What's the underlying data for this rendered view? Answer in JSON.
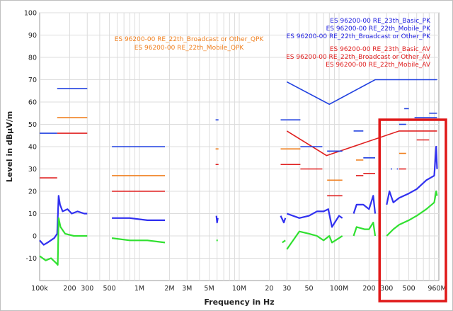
{
  "chart_data": {
    "type": "line",
    "xlabel": "Frequency in Hz",
    "ylabel": "Level in dBµV/m",
    "x_scale": "log",
    "xlim": [
      100000,
      1000000000
    ],
    "ylim": [
      -20,
      100
    ],
    "grid": true,
    "x_ticks": [
      {
        "value": 100000,
        "label": "100k"
      },
      {
        "value": 200000,
        "label": "200"
      },
      {
        "value": 300000,
        "label": "300"
      },
      {
        "value": 500000,
        "label": "500"
      },
      {
        "value": 1000000,
        "label": "1M"
      },
      {
        "value": 2000000,
        "label": "2M"
      },
      {
        "value": 3000000,
        "label": "3M"
      },
      {
        "value": 5000000,
        "label": "5M"
      },
      {
        "value": 10000000,
        "label": "10M"
      },
      {
        "value": 20000000,
        "label": "20"
      },
      {
        "value": 30000000,
        "label": "30"
      },
      {
        "value": 50000000,
        "label": "50"
      },
      {
        "value": 100000000,
        "label": "100M"
      },
      {
        "value": 200000000,
        "label": "200"
      },
      {
        "value": 300000000,
        "label": "300"
      },
      {
        "value": 500000000,
        "label": "500"
      },
      {
        "value": 960000000,
        "label": "960M"
      }
    ],
    "y_ticks": [
      -10,
      0,
      10,
      20,
      30,
      40,
      50,
      60,
      70,
      80,
      90,
      100
    ],
    "legend_position": "top-right",
    "legend": [
      {
        "text": "ES 96200-00 RE_23th_Basic_PK",
        "color": "#2020e0"
      },
      {
        "text": "ES 96200-00 RE_22th_Mobile_PK",
        "color": "#2020e0"
      },
      {
        "text": "ES 96200-00 RE_22th_Broadcast or Other_PK",
        "color": "#2020e0"
      },
      {
        "text": "ES 96200-00 RE_23th_Basic_AV",
        "color": "#e02020"
      },
      {
        "text": "ES 96200-00 RE_22th_Broadcast or Other_AV",
        "color": "#e02020"
      },
      {
        "text": "ES 96200-00 RE_22th_Mobile_AV",
        "color": "#e02020"
      }
    ],
    "legend_qpk": [
      {
        "text": "ES 96200-00 RE_22th_Broadcast or Other_QPK",
        "color": "#f08020"
      },
      {
        "text": "ES 96200-00 RE_22th_Mobile_QPK",
        "color": "#f08020"
      }
    ],
    "limit_lines": [
      {
        "color": "#2040e0",
        "points": [
          [
            30000000,
            69
          ],
          [
            80000000,
            59
          ],
          [
            230000000,
            70
          ],
          [
            960000000,
            70
          ]
        ]
      },
      {
        "color": "#e02020",
        "points": [
          [
            30000000,
            47
          ],
          [
            75000000,
            36
          ],
          [
            400000000,
            47
          ],
          [
            960000000,
            47
          ]
        ]
      },
      {
        "color": "#2040e0",
        "points": [
          [
            150000,
            66
          ],
          [
            300000,
            66
          ]
        ]
      },
      {
        "color": "#2040e0",
        "points": [
          [
            100000,
            46
          ],
          [
            150000,
            46
          ]
        ]
      },
      {
        "color": "#f08020",
        "points": [
          [
            150000,
            53
          ],
          [
            300000,
            53
          ]
        ]
      },
      {
        "color": "#e02020",
        "points": [
          [
            150000,
            46
          ],
          [
            300000,
            46
          ]
        ]
      },
      {
        "color": "#e02020",
        "points": [
          [
            100000,
            26
          ],
          [
            150000,
            26
          ]
        ]
      },
      {
        "color": "#2040e0",
        "points": [
          [
            530000,
            40
          ],
          [
            1800000,
            40
          ]
        ]
      },
      {
        "color": "#f08020",
        "points": [
          [
            530000,
            27
          ],
          [
            1800000,
            27
          ]
        ]
      },
      {
        "color": "#e02020",
        "points": [
          [
            530000,
            20
          ],
          [
            1800000,
            20
          ]
        ]
      },
      {
        "color": "#2040e0",
        "points": [
          [
            5800000,
            52
          ],
          [
            6200000,
            52
          ]
        ]
      },
      {
        "color": "#f08020",
        "points": [
          [
            5800000,
            39
          ],
          [
            6200000,
            39
          ]
        ]
      },
      {
        "color": "#e02020",
        "points": [
          [
            5800000,
            32
          ],
          [
            6200000,
            32
          ]
        ]
      },
      {
        "color": "#2040e0",
        "points": [
          [
            26000000,
            52
          ],
          [
            30000000,
            52
          ]
        ]
      },
      {
        "color": "#f08020",
        "points": [
          [
            26000000,
            39
          ],
          [
            30000000,
            39
          ]
        ]
      },
      {
        "color": "#e02020",
        "points": [
          [
            26000000,
            32
          ],
          [
            30000000,
            32
          ]
        ]
      },
      {
        "color": "#2040e0",
        "points": [
          [
            30000000,
            52
          ],
          [
            41000000,
            52
          ]
        ]
      },
      {
        "color": "#f08020",
        "points": [
          [
            30000000,
            39
          ],
          [
            41000000,
            39
          ]
        ]
      },
      {
        "color": "#e02020",
        "points": [
          [
            30000000,
            32
          ],
          [
            41000000,
            32
          ]
        ]
      },
      {
        "color": "#2040e0",
        "points": [
          [
            41000000,
            40
          ],
          [
            68000000,
            40
          ]
        ]
      },
      {
        "color": "#e02020",
        "points": [
          [
            41000000,
            30
          ],
          [
            68000000,
            30
          ]
        ]
      },
      {
        "color": "#2040e0",
        "points": [
          [
            76000000,
            38
          ],
          [
            108000000,
            38
          ]
        ]
      },
      {
        "color": "#f08020",
        "points": [
          [
            76000000,
            25
          ],
          [
            108000000,
            25
          ]
        ]
      },
      {
        "color": "#e02020",
        "points": [
          [
            76000000,
            18
          ],
          [
            108000000,
            18
          ]
        ]
      },
      {
        "color": "#2040e0",
        "points": [
          [
            140000000,
            47
          ],
          [
            175000000,
            47
          ]
        ]
      },
      {
        "color": "#f08020",
        "points": [
          [
            148000000,
            34
          ],
          [
            175000000,
            34
          ]
        ]
      },
      {
        "color": "#e02020",
        "points": [
          [
            148000000,
            27
          ],
          [
            175000000,
            27
          ]
        ]
      },
      {
        "color": "#2040e0",
        "points": [
          [
            175000000,
            35
          ],
          [
            230000000,
            35
          ]
        ]
      },
      {
        "color": "#e02020",
        "points": [
          [
            175000000,
            28
          ],
          [
            230000000,
            28
          ]
        ]
      },
      {
        "color": "#f08020",
        "points": [
          [
            400000000,
            37
          ],
          [
            470000000,
            37
          ]
        ]
      },
      {
        "color": "#e02020",
        "points": [
          [
            400000000,
            30
          ],
          [
            470000000,
            30
          ]
        ]
      },
      {
        "color": "#2040e0",
        "points": [
          [
            400000000,
            50
          ],
          [
            470000000,
            50
          ]
        ]
      },
      {
        "color": "#2040e0",
        "points": [
          [
            450000000,
            57
          ],
          [
            500000000,
            57
          ]
        ]
      },
      {
        "color": "#2040e0",
        "points": [
          [
            570000000,
            53
          ],
          [
            960000000,
            53
          ]
        ]
      },
      {
        "color": "#e02020",
        "points": [
          [
            600000000,
            43
          ],
          [
            800000000,
            43
          ]
        ]
      },
      {
        "color": "#2040e0",
        "points": [
          [
            800000000,
            55
          ],
          [
            960000000,
            55
          ]
        ]
      },
      {
        "color": "#2040e0",
        "points": [
          [
            330000000,
            30
          ],
          [
            340000000,
            30
          ]
        ]
      },
      {
        "color": "#2040e0",
        "points": [
          [
            380000000,
            30
          ],
          [
            390000000,
            30
          ]
        ]
      }
    ],
    "series": [
      {
        "color": "#3030f0",
        "points": [
          [
            100000,
            -2
          ],
          [
            110000,
            -4
          ],
          [
            120000,
            -3
          ],
          [
            140000,
            -1
          ],
          [
            150000,
            1
          ],
          [
            155000,
            18
          ],
          [
            160000,
            14
          ],
          [
            170000,
            11
          ],
          [
            190000,
            12
          ],
          [
            210000,
            10
          ],
          [
            240000,
            11
          ],
          [
            280000,
            10
          ],
          [
            300000,
            10
          ]
        ]
      },
      {
        "color": "#30e030",
        "points": [
          [
            100000,
            -9
          ],
          [
            115000,
            -11
          ],
          [
            130000,
            -10
          ],
          [
            145000,
            -12
          ],
          [
            152000,
            -13
          ],
          [
            155000,
            8
          ],
          [
            162000,
            4
          ],
          [
            180000,
            1
          ],
          [
            220000,
            0
          ],
          [
            270000,
            0
          ],
          [
            300000,
            0
          ]
        ]
      },
      {
        "color": "#3030f0",
        "points": [
          [
            530000,
            8
          ],
          [
            800000,
            8
          ],
          [
            1200000,
            7
          ],
          [
            1800000,
            7
          ]
        ]
      },
      {
        "color": "#30e030",
        "points": [
          [
            530000,
            -1
          ],
          [
            800000,
            -2
          ],
          [
            1200000,
            -2
          ],
          [
            1800000,
            -3
          ]
        ]
      },
      {
        "color": "#3030f0",
        "points": [
          [
            5900000,
            9
          ],
          [
            6000000,
            6
          ],
          [
            6100000,
            8
          ]
        ]
      },
      {
        "color": "#30e030",
        "points": [
          [
            5900000,
            -2
          ],
          [
            6100000,
            -2
          ]
        ]
      },
      {
        "color": "#3030f0",
        "points": [
          [
            26000000,
            9
          ],
          [
            28000000,
            6
          ],
          [
            29000000,
            8
          ]
        ]
      },
      {
        "color": "#30e030",
        "points": [
          [
            27000000,
            -3
          ],
          [
            29000000,
            -2
          ]
        ]
      },
      {
        "color": "#3030f0",
        "points": [
          [
            30000000,
            10
          ],
          [
            40000000,
            8
          ],
          [
            50000000,
            9
          ],
          [
            60000000,
            11
          ],
          [
            70000000,
            11
          ],
          [
            78000000,
            12
          ],
          [
            85000000,
            4
          ],
          [
            100000000,
            9
          ],
          [
            108000000,
            8
          ]
        ]
      },
      {
        "color": "#30e030",
        "points": [
          [
            30000000,
            -6
          ],
          [
            40000000,
            2
          ],
          [
            50000000,
            1
          ],
          [
            60000000,
            0
          ],
          [
            70000000,
            -2
          ],
          [
            80000000,
            0
          ],
          [
            85000000,
            -3
          ],
          [
            100000000,
            -1
          ],
          [
            108000000,
            0
          ]
        ]
      },
      {
        "color": "#3030f0",
        "points": [
          [
            140000000,
            10
          ],
          [
            150000000,
            14
          ],
          [
            175000000,
            14
          ],
          [
            200000000,
            12
          ],
          [
            220000000,
            18
          ],
          [
            230000000,
            10
          ]
        ]
      },
      {
        "color": "#30e030",
        "points": [
          [
            140000000,
            0
          ],
          [
            150000000,
            4
          ],
          [
            180000000,
            3
          ],
          [
            200000000,
            3
          ],
          [
            220000000,
            6
          ],
          [
            230000000,
            0
          ]
        ]
      },
      {
        "color": "#3030f0",
        "points": [
          [
            300000000,
            14
          ],
          [
            320000000,
            20
          ],
          [
            350000000,
            15
          ],
          [
            400000000,
            17
          ],
          [
            500000000,
            19
          ],
          [
            600000000,
            21
          ],
          [
            750000000,
            25
          ],
          [
            900000000,
            27
          ],
          [
            940000000,
            40
          ],
          [
            960000000,
            30
          ]
        ]
      },
      {
        "color": "#30e030",
        "points": [
          [
            300000000,
            0
          ],
          [
            350000000,
            3
          ],
          [
            400000000,
            5
          ],
          [
            500000000,
            7
          ],
          [
            600000000,
            9
          ],
          [
            750000000,
            12
          ],
          [
            900000000,
            15
          ],
          [
            940000000,
            20
          ],
          [
            960000000,
            18
          ]
        ]
      }
    ],
    "highlight_range": [
      295000000,
      1000000000
    ]
  }
}
